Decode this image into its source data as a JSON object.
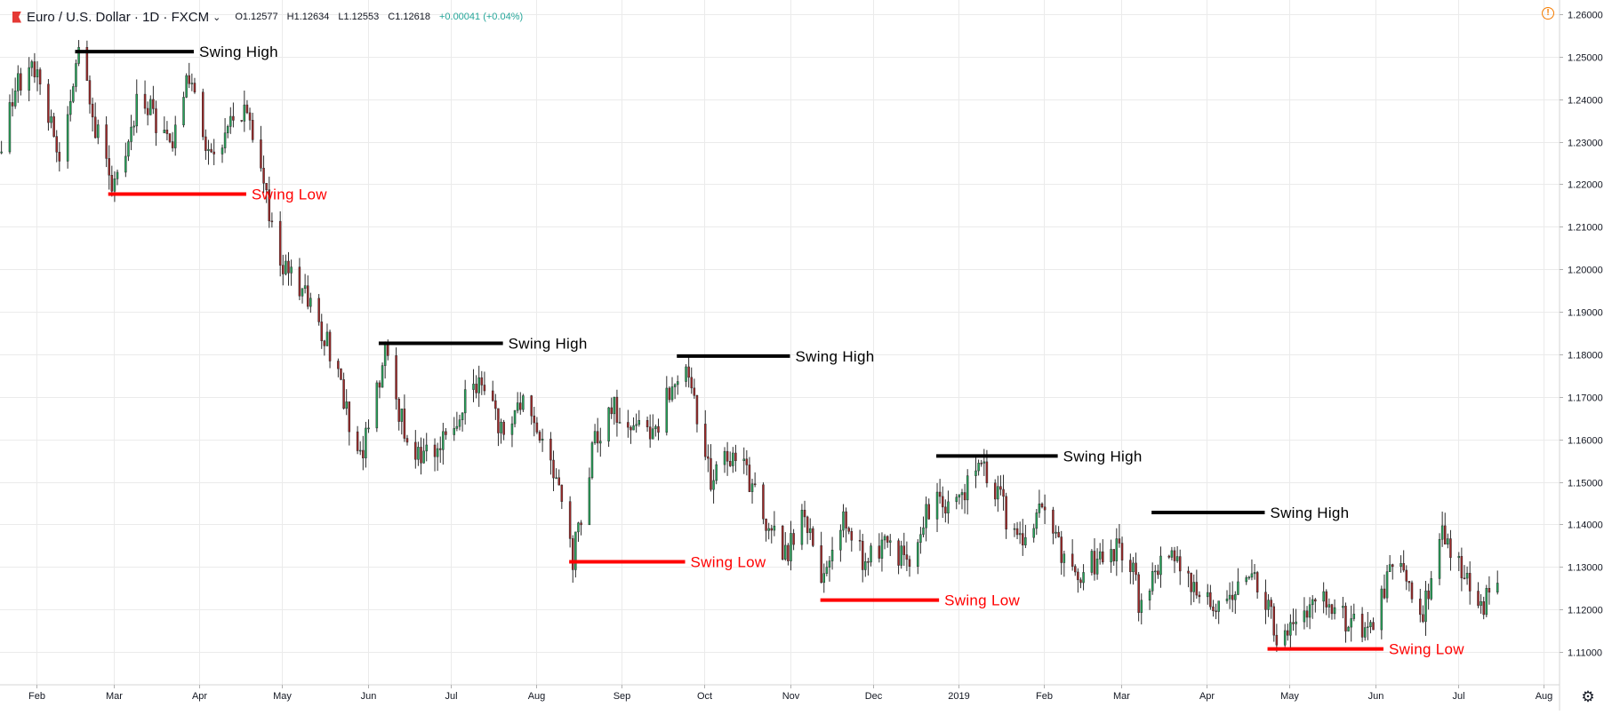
{
  "legend": {
    "symbol": "Euro / U.S. Dollar",
    "interval": "1D",
    "exchange": "FXCM",
    "open": "O1.12577",
    "high": "H1.12634",
    "low": "L1.12553",
    "close": "C1.12618",
    "change": "+0.00041 (+0.04%)"
  },
  "icons": {
    "alert": "alert-icon",
    "settings": "gear-icon",
    "symbol_flag": "flag-icon"
  },
  "colors": {
    "bull": "#26a65b",
    "bear": "#a02828",
    "swing_high": "#000000",
    "swing_low": "#ff0000",
    "grid": "#ebebeb",
    "axis_text": "#131722"
  },
  "chart_data": {
    "type": "candlestick",
    "symbol": "EURUSD",
    "y_ticks": [
      1.26,
      1.25,
      1.24,
      1.23,
      1.22,
      1.21,
      1.2,
      1.19,
      1.18,
      1.17,
      1.16,
      1.15,
      1.14,
      1.13,
      1.12,
      1.11
    ],
    "y_tick_labels": [
      "1.26000",
      "1.25000",
      "1.24000",
      "1.23000",
      "1.22000",
      "1.21000",
      "1.20000",
      "1.19000",
      "1.18000",
      "1.17000",
      "1.16000",
      "1.15000",
      "1.14000",
      "1.13000",
      "1.12000",
      "1.11000"
    ],
    "ylim": [
      1.1035,
      1.2625
    ],
    "x_range": [
      "2018-01-15",
      "2019-08-08"
    ],
    "x_ticks": [
      {
        "date": "2018-02-01",
        "label": "Feb"
      },
      {
        "date": "2018-03-01",
        "label": "Mar"
      },
      {
        "date": "2018-04-01",
        "label": "Apr"
      },
      {
        "date": "2018-05-01",
        "label": "May"
      },
      {
        "date": "2018-06-01",
        "label": "Jun"
      },
      {
        "date": "2018-07-01",
        "label": "Jul"
      },
      {
        "date": "2018-08-01",
        "label": "Aug"
      },
      {
        "date": "2018-09-01",
        "label": "Sep"
      },
      {
        "date": "2018-10-01",
        "label": "Oct"
      },
      {
        "date": "2018-11-01",
        "label": "Nov"
      },
      {
        "date": "2018-12-01",
        "label": "Dec"
      },
      {
        "date": "2019-01-01",
        "label": "2019"
      },
      {
        "date": "2019-02-01",
        "label": "Feb"
      },
      {
        "date": "2019-03-01",
        "label": "Mar"
      },
      {
        "date": "2019-04-01",
        "label": "Apr"
      },
      {
        "date": "2019-05-01",
        "label": "May"
      },
      {
        "date": "2019-06-01",
        "label": "Jun"
      },
      {
        "date": "2019-07-01",
        "label": "Jul"
      },
      {
        "date": "2019-08-01",
        "label": "Aug"
      }
    ],
    "grid": true,
    "price_path": [
      {
        "date": "2018-01-15",
        "close": 1.222
      },
      {
        "date": "2018-01-25",
        "close": 1.243
      },
      {
        "date": "2018-02-01",
        "close": 1.248
      },
      {
        "date": "2018-02-09",
        "close": 1.227
      },
      {
        "date": "2018-02-16",
        "close": 1.252
      },
      {
        "date": "2018-02-23",
        "close": 1.231
      },
      {
        "date": "2018-03-01",
        "close": 1.219
      },
      {
        "date": "2018-03-09",
        "close": 1.238
      },
      {
        "date": "2018-03-14",
        "close": 1.237
      },
      {
        "date": "2018-03-21",
        "close": 1.228
      },
      {
        "date": "2018-03-27",
        "close": 1.245
      },
      {
        "date": "2018-04-06",
        "close": 1.225
      },
      {
        "date": "2018-04-13",
        "close": 1.235
      },
      {
        "date": "2018-04-17",
        "close": 1.239
      },
      {
        "date": "2018-04-20",
        "close": 1.23
      },
      {
        "date": "2018-05-01",
        "close": 1.201
      },
      {
        "date": "2018-05-10",
        "close": 1.194
      },
      {
        "date": "2018-05-20",
        "close": 1.177
      },
      {
        "date": "2018-05-29",
        "close": 1.155
      },
      {
        "date": "2018-06-07",
        "close": 1.18
      },
      {
        "date": "2018-06-14",
        "close": 1.162
      },
      {
        "date": "2018-06-21",
        "close": 1.155
      },
      {
        "date": "2018-07-02",
        "close": 1.165
      },
      {
        "date": "2018-07-10",
        "close": 1.174
      },
      {
        "date": "2018-07-19",
        "close": 1.162
      },
      {
        "date": "2018-07-27",
        "close": 1.168
      },
      {
        "date": "2018-08-06",
        "close": 1.156
      },
      {
        "date": "2018-08-14",
        "close": 1.132
      },
      {
        "date": "2018-08-22",
        "close": 1.16
      },
      {
        "date": "2018-08-28",
        "close": 1.168
      },
      {
        "date": "2018-09-05",
        "close": 1.161
      },
      {
        "date": "2018-09-13",
        "close": 1.163
      },
      {
        "date": "2018-09-24",
        "close": 1.179
      },
      {
        "date": "2018-10-03",
        "close": 1.15
      },
      {
        "date": "2018-10-12",
        "close": 1.158
      },
      {
        "date": "2018-10-25",
        "close": 1.138
      },
      {
        "date": "2018-10-31",
        "close": 1.133
      },
      {
        "date": "2018-11-06",
        "close": 1.144
      },
      {
        "date": "2018-11-12",
        "close": 1.124
      },
      {
        "date": "2018-11-20",
        "close": 1.142
      },
      {
        "date": "2018-11-28",
        "close": 1.13
      },
      {
        "date": "2018-12-05",
        "close": 1.136
      },
      {
        "date": "2018-12-14",
        "close": 1.131
      },
      {
        "date": "2018-12-21",
        "close": 1.144
      },
      {
        "date": "2019-01-01",
        "close": 1.147
      },
      {
        "date": "2019-01-10",
        "close": 1.154
      },
      {
        "date": "2019-01-22",
        "close": 1.136
      },
      {
        "date": "2019-01-28",
        "close": 1.141
      },
      {
        "date": "2019-01-31",
        "close": 1.146
      },
      {
        "date": "2019-02-07",
        "close": 1.133
      },
      {
        "date": "2019-02-15",
        "close": 1.129
      },
      {
        "date": "2019-02-25",
        "close": 1.135
      },
      {
        "date": "2019-03-05",
        "close": 1.13
      },
      {
        "date": "2019-03-07",
        "close": 1.12
      },
      {
        "date": "2019-03-19",
        "close": 1.136
      },
      {
        "date": "2019-03-26",
        "close": 1.126
      },
      {
        "date": "2019-04-02",
        "close": 1.121
      },
      {
        "date": "2019-04-11",
        "close": 1.126
      },
      {
        "date": "2019-04-17",
        "close": 1.13
      },
      {
        "date": "2019-04-26",
        "close": 1.114
      },
      {
        "date": "2019-05-06",
        "close": 1.12
      },
      {
        "date": "2019-05-13",
        "close": 1.122
      },
      {
        "date": "2019-05-23",
        "close": 1.116
      },
      {
        "date": "2019-05-31",
        "close": 1.114
      },
      {
        "date": "2019-06-07",
        "close": 1.132
      },
      {
        "date": "2019-06-18",
        "close": 1.12
      },
      {
        "date": "2019-06-25",
        "close": 1.138
      },
      {
        "date": "2019-07-02",
        "close": 1.129
      },
      {
        "date": "2019-07-09",
        "close": 1.121
      },
      {
        "date": "2019-07-15",
        "close": 1.1262
      }
    ],
    "annotations": [
      {
        "type": "swing_high",
        "label": "Swing High",
        "price": 1.2512,
        "date_from": "2018-02-15",
        "date_to": "2018-03-30"
      },
      {
        "type": "swing_low",
        "label": "Swing Low",
        "price": 1.2177,
        "date_from": "2018-02-27",
        "date_to": "2018-04-18"
      },
      {
        "type": "swing_high",
        "label": "Swing High",
        "price": 1.1826,
        "date_from": "2018-06-05",
        "date_to": "2018-07-20"
      },
      {
        "type": "swing_low",
        "label": "Swing Low",
        "price": 1.1312,
        "date_from": "2018-08-13",
        "date_to": "2018-09-24"
      },
      {
        "type": "swing_high",
        "label": "Swing High",
        "price": 1.1796,
        "date_from": "2018-09-21",
        "date_to": "2018-11-01"
      },
      {
        "type": "swing_low",
        "label": "Swing Low",
        "price": 1.1222,
        "date_from": "2018-11-12",
        "date_to": "2018-12-25"
      },
      {
        "type": "swing_high",
        "label": "Swing High",
        "price": 1.1561,
        "date_from": "2018-12-24",
        "date_to": "2019-02-06"
      },
      {
        "type": "swing_high",
        "label": "Swing High",
        "price": 1.1428,
        "date_from": "2019-03-12",
        "date_to": "2019-04-22"
      },
      {
        "type": "swing_low",
        "label": "Swing Low",
        "price": 1.1107,
        "date_from": "2019-04-23",
        "date_to": "2019-06-04"
      }
    ]
  }
}
